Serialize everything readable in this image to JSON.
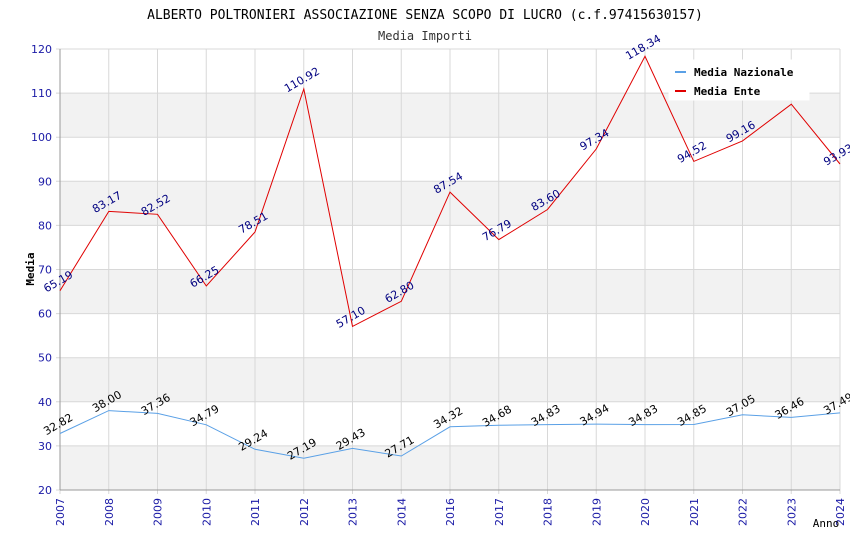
{
  "chart_data": {
    "type": "line",
    "title": "ALBERTO POLTRONIERI ASSOCIAZIONE SENZA SCOPO DI LUCRO (c.f.97415630157)",
    "subtitle": "Media Importi",
    "xlabel": "Anno",
    "ylabel": "Media",
    "ylim": [
      20,
      120
    ],
    "yticks": [
      "20",
      "30",
      "40",
      "50",
      "60",
      "70",
      "80",
      "90",
      "100",
      "110",
      "120"
    ],
    "categories": [
      "2007",
      "2008",
      "2009",
      "2010",
      "2011",
      "2012",
      "2013",
      "2014",
      "2016",
      "2017",
      "2018",
      "2019",
      "2020",
      "2021",
      "2022",
      "2023",
      "2024"
    ],
    "grid": true,
    "legend_position": "top-right",
    "series": [
      {
        "name": "Media Nazionale",
        "color": "#5aa0e6",
        "label_color": "#000000",
        "values": [
          32.82,
          38.0,
          37.36,
          34.79,
          29.24,
          27.19,
          29.43,
          27.71,
          34.32,
          34.68,
          34.83,
          34.94,
          34.83,
          34.85,
          37.05,
          36.46,
          37.49
        ],
        "labels": [
          "32.82",
          "38.00",
          "37.36",
          "34.79",
          "29.24",
          "27.19",
          "29.43",
          "27.71",
          "34.32",
          "34.68",
          "34.83",
          "34.94",
          "34.83",
          "34.85",
          "37.05",
          "36.46",
          "37.49"
        ]
      },
      {
        "name": "Media Ente",
        "color": "#e00000",
        "label_color": "#000080",
        "values": [
          65.19,
          83.17,
          82.52,
          66.25,
          78.51,
          110.92,
          57.1,
          62.8,
          87.54,
          76.79,
          83.6,
          97.34,
          118.34,
          94.52,
          99.16,
          107.49,
          93.93
        ],
        "labels": [
          "65.19",
          "83.17",
          "82.52",
          "66.25",
          "78.51",
          "110.92",
          "57.10",
          "62.80",
          "87.54",
          "76.79",
          "83.60",
          "97.34",
          "118.34",
          "94.52",
          "99.16",
          "",
          "93.93"
        ]
      }
    ]
  }
}
